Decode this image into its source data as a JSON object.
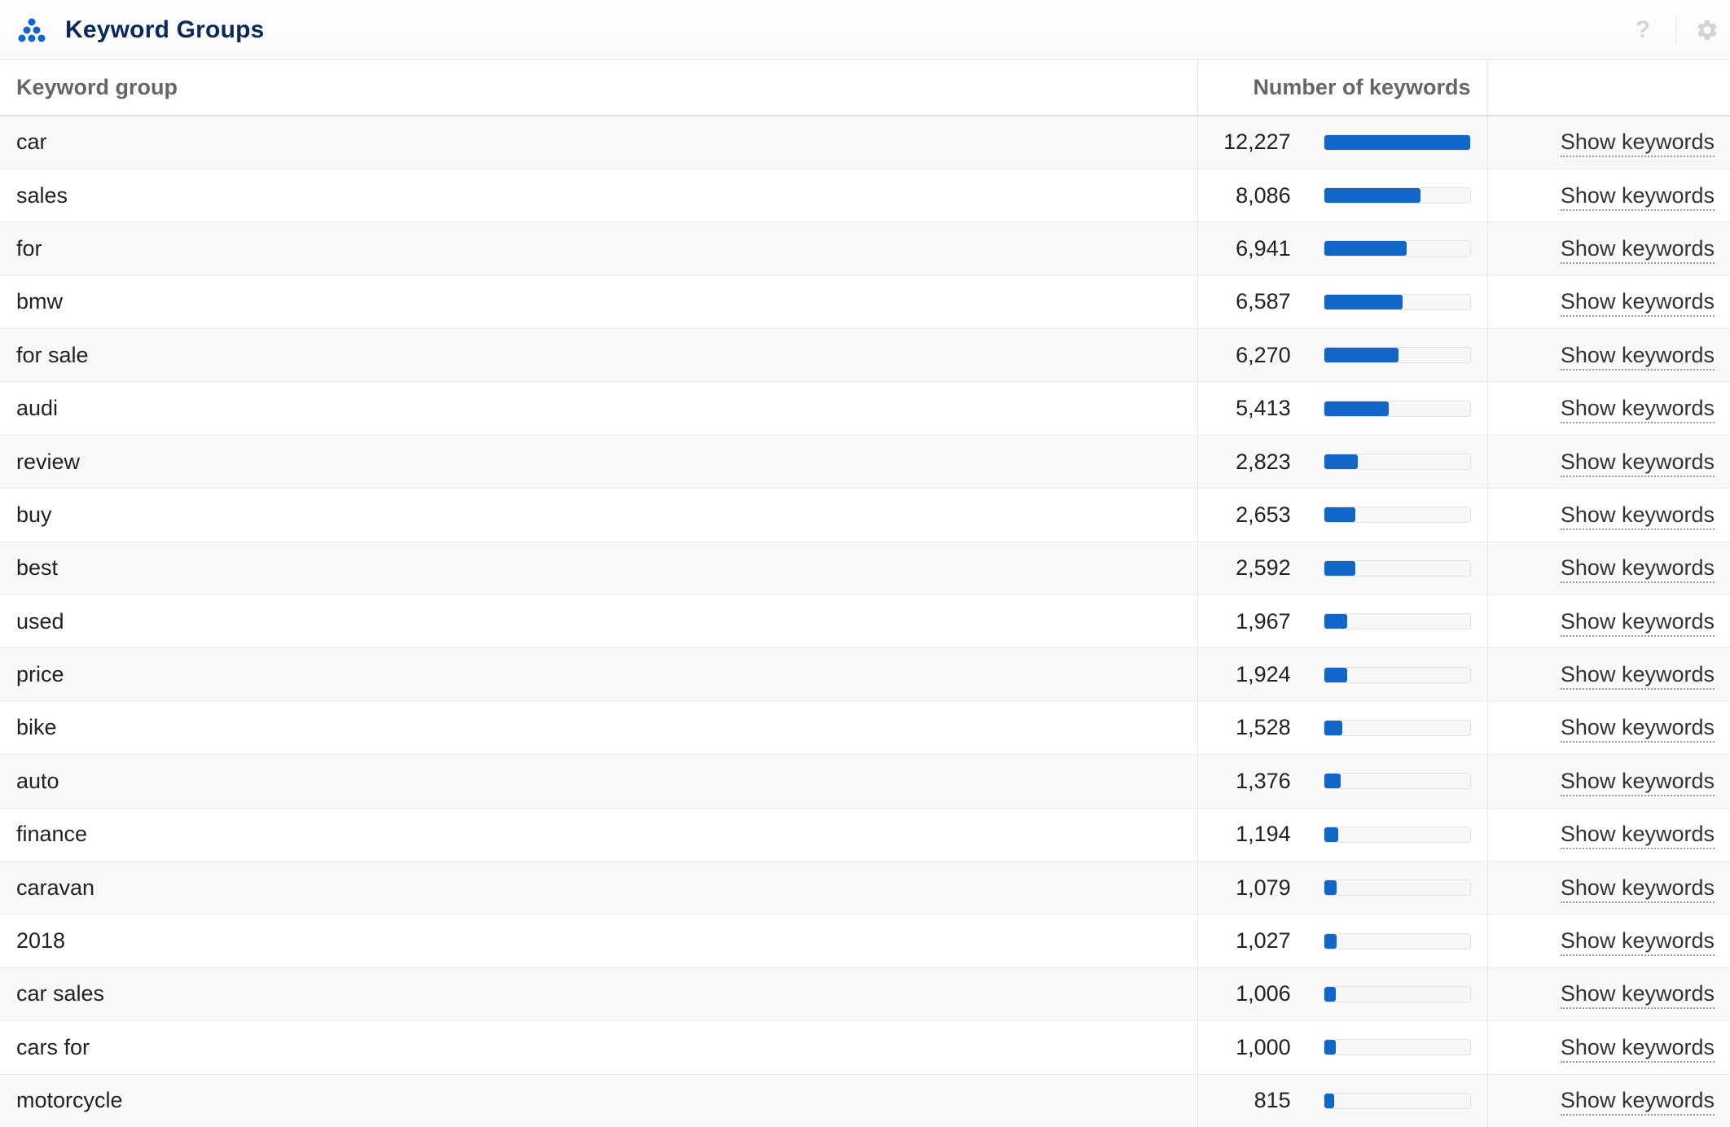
{
  "header": {
    "title": "Keyword Groups",
    "logo_icon": "keyword-groups-dots-icon",
    "help_label": "?",
    "help_icon": "help-icon",
    "settings_icon": "gear-icon",
    "accent_color": "#1266c8",
    "title_color": "#0b2a5b"
  },
  "table": {
    "columns": {
      "group": "Keyword group",
      "count": "Number of keywords",
      "action": ""
    },
    "max_count": 12227,
    "rows": [
      {
        "group": "car",
        "count_label": "12,227",
        "count": 12227,
        "action": "Show keywords"
      },
      {
        "group": "sales",
        "count_label": "8,086",
        "count": 8086,
        "action": "Show keywords"
      },
      {
        "group": "for",
        "count_label": "6,941",
        "count": 6941,
        "action": "Show keywords"
      },
      {
        "group": "bmw",
        "count_label": "6,587",
        "count": 6587,
        "action": "Show keywords"
      },
      {
        "group": "for sale",
        "count_label": "6,270",
        "count": 6270,
        "action": "Show keywords"
      },
      {
        "group": "audi",
        "count_label": "5,413",
        "count": 5413,
        "action": "Show keywords"
      },
      {
        "group": "review",
        "count_label": "2,823",
        "count": 2823,
        "action": "Show keywords"
      },
      {
        "group": "buy",
        "count_label": "2,653",
        "count": 2653,
        "action": "Show keywords"
      },
      {
        "group": "best",
        "count_label": "2,592",
        "count": 2592,
        "action": "Show keywords"
      },
      {
        "group": "used",
        "count_label": "1,967",
        "count": 1967,
        "action": "Show keywords"
      },
      {
        "group": "price",
        "count_label": "1,924",
        "count": 1924,
        "action": "Show keywords"
      },
      {
        "group": "bike",
        "count_label": "1,528",
        "count": 1528,
        "action": "Show keywords"
      },
      {
        "group": "auto",
        "count_label": "1,376",
        "count": 1376,
        "action": "Show keywords"
      },
      {
        "group": "finance",
        "count_label": "1,194",
        "count": 1194,
        "action": "Show keywords"
      },
      {
        "group": "caravan",
        "count_label": "1,079",
        "count": 1079,
        "action": "Show keywords"
      },
      {
        "group": "2018",
        "count_label": "1,027",
        "count": 1027,
        "action": "Show keywords"
      },
      {
        "group": "car sales",
        "count_label": "1,006",
        "count": 1006,
        "action": "Show keywords"
      },
      {
        "group": "cars for",
        "count_label": "1,000",
        "count": 1000,
        "action": "Show keywords"
      },
      {
        "group": "motorcycle",
        "count_label": "815",
        "count": 815,
        "action": "Show keywords"
      }
    ]
  }
}
